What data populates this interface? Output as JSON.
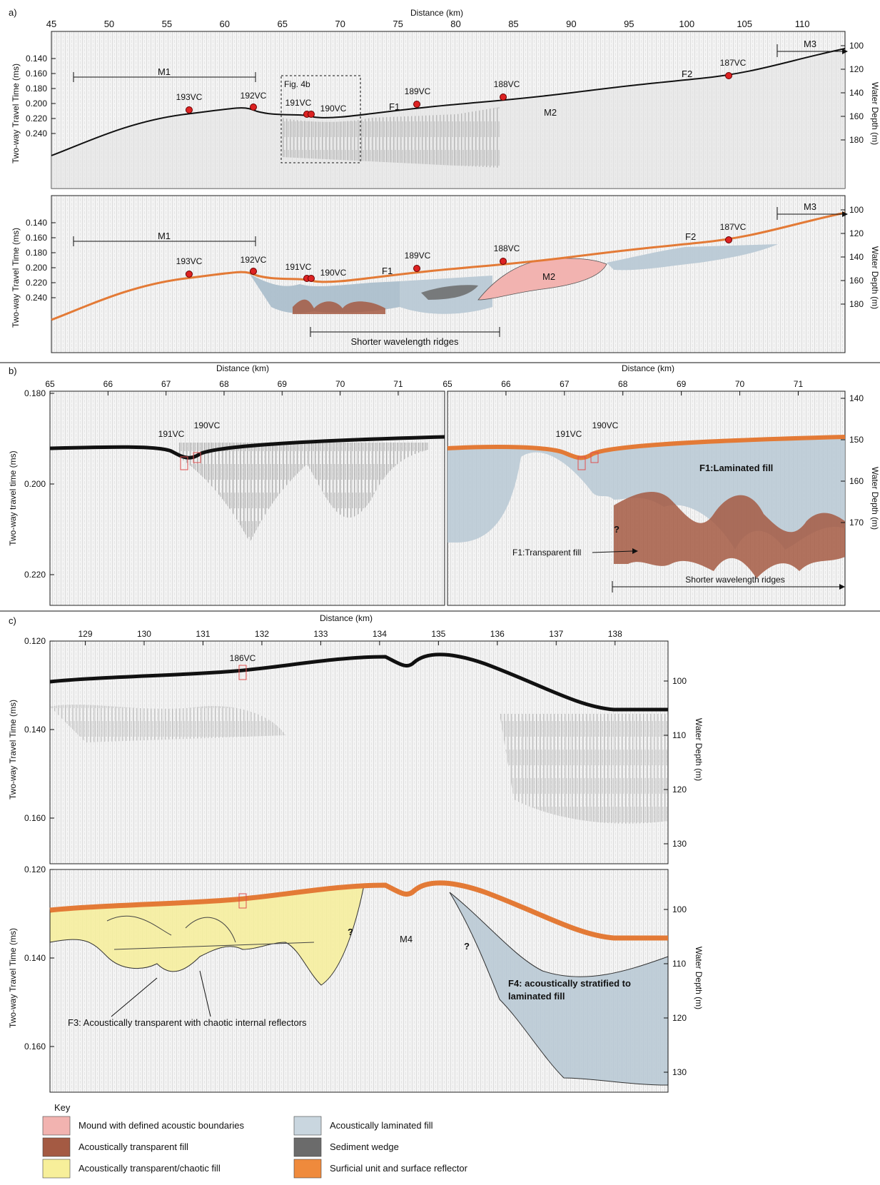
{
  "panel_a": {
    "letter": "a)",
    "x_title": "Distance (km)",
    "x_ticks": [
      45,
      50,
      55,
      60,
      65,
      70,
      75,
      80,
      85,
      90,
      95,
      100,
      105,
      110
    ],
    "left_axis": "Two-way Travel Time (ms)",
    "right_axis": "Water Depth (m)",
    "twt_ticks": [
      "0.140",
      "0.160",
      "0.180",
      "0.200",
      "0.220",
      "0.240"
    ],
    "depth_ticks": [
      "100",
      "120",
      "140",
      "160",
      "180"
    ],
    "units": [
      "M1",
      "M2",
      "M3",
      "F1",
      "F2"
    ],
    "cores": [
      "193VC",
      "192VC",
      "191VC",
      "190VC",
      "189VC",
      "188VC",
      "187VC"
    ],
    "fig_box": "Fig. 4b",
    "ridges": "Shorter wavelength ridges"
  },
  "panel_b": {
    "letter": "b)",
    "x_title": "Distance (km)",
    "x_ticks": [
      65,
      66,
      67,
      68,
      69,
      70,
      71
    ],
    "left_axis": "Two-way travel time (ms)",
    "right_axis": "Water Depth (m)",
    "twt_ticks": [
      "0.180",
      "0.200",
      "0.220"
    ],
    "depth_ticks": [
      "140",
      "150",
      "160",
      "170"
    ],
    "cores": [
      "191VC",
      "190VC"
    ],
    "laminated": "F1:Laminated fill",
    "transparent": "F1:Transparent fill",
    "ridges": "Shorter wavelength ridges",
    "q": "?"
  },
  "panel_c": {
    "letter": "c)",
    "x_title": "Distance (km)",
    "x_ticks": [
      129,
      130,
      131,
      132,
      133,
      134,
      135,
      136,
      137,
      138
    ],
    "left_axis": "Two-way Travel Time (ms)",
    "right_axis": "Water Depth (m)",
    "twt_ticks": [
      "0.120",
      "0.140",
      "0.160"
    ],
    "depth_ticks": [
      "100",
      "110",
      "120",
      "130"
    ],
    "core": "186VC",
    "m4": "M4",
    "f4": [
      "F4: acoustically stratified to",
      "laminated fill"
    ],
    "f3": "F3: Acoustically transparent with chaotic internal reflectors",
    "q": "?"
  },
  "key": {
    "title": "Key",
    "items": [
      {
        "label": "Mound with defined acoustic boundaries",
        "color": "#f2b3b0"
      },
      {
        "label": "Acoustically transparent fill",
        "color": "#a45a43"
      },
      {
        "label": "Acoustically transparent/chaotic fill",
        "color": "#f7ef9a"
      },
      {
        "label": "Acoustically laminated fill",
        "color": "#c9d6df"
      },
      {
        "label": "Sediment wedge",
        "color": "#6b6b6b"
      },
      {
        "label": "Surficial unit and surface reflector",
        "color": "#ef8a3c"
      }
    ]
  }
}
